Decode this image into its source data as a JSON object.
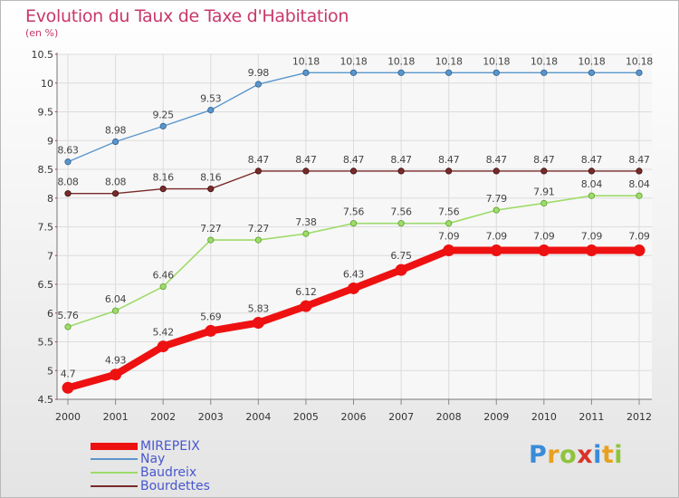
{
  "title": "Evolution du Taux de Taxe d'Habitation",
  "unit_label": "(en %)",
  "brand": {
    "letters": [
      "P",
      "r",
      "o",
      "x",
      "i",
      "t",
      "i"
    ],
    "colors": [
      "#3a8ad8",
      "#e8a020",
      "#8fc43c",
      "#d8342a",
      "#3a8ad8",
      "#e8a020",
      "#8fc43c"
    ]
  },
  "chart_data": {
    "type": "line",
    "x": [
      "2000",
      "2001",
      "2002",
      "2003",
      "2004",
      "2005",
      "2006",
      "2007",
      "2008",
      "2009",
      "2010",
      "2011",
      "2012"
    ],
    "ylim": [
      4.5,
      10.5
    ],
    "y_ticks": [
      "4.5",
      "5",
      "5.5",
      "6",
      "6.5",
      "7",
      "7.5",
      "8",
      "8.5",
      "9",
      "9.5",
      "10",
      "10.5"
    ],
    "grid": true,
    "legend_position": "bottom-left",
    "series": [
      {
        "name": "MIREPEIX",
        "color": "#ee1111",
        "values": [
          4.7,
          4.93,
          5.42,
          5.69,
          5.83,
          6.12,
          6.43,
          6.75,
          7.09,
          7.09,
          7.09,
          7.09,
          7.09
        ],
        "labels": [
          "4.7",
          "4.93",
          "5.42",
          "5.69",
          "5.83",
          "6.12",
          "6.43",
          "6.75",
          "7.09",
          "7.09",
          "7.09",
          "7.09",
          "7.09"
        ]
      },
      {
        "name": "Nay",
        "color": "#5a96cc",
        "values": [
          8.63,
          8.98,
          9.25,
          9.53,
          9.98,
          10.18,
          10.18,
          10.18,
          10.18,
          10.18,
          10.18,
          10.18,
          10.18
        ],
        "labels": [
          "8.63",
          "8.98",
          "9.25",
          "9.53",
          "9.98",
          "10.18",
          "10.18",
          "10.18",
          "10.18",
          "10.18",
          "10.18",
          "10.18",
          "10.18"
        ]
      },
      {
        "name": "Baudreix",
        "color": "#9edb6a",
        "values": [
          5.76,
          6.04,
          6.46,
          7.27,
          7.27,
          7.38,
          7.56,
          7.56,
          7.56,
          7.79,
          7.91,
          8.04,
          8.04
        ],
        "labels": [
          "5.76",
          "6.04",
          "6.46",
          "7.27",
          "7.27",
          "7.38",
          "7.56",
          "7.56",
          "7.56",
          "7.79",
          "7.91",
          "8.04",
          "8.04"
        ]
      },
      {
        "name": "Bourdettes",
        "color": "#7a2a2a",
        "values": [
          8.08,
          8.08,
          8.16,
          8.16,
          8.47,
          8.47,
          8.47,
          8.47,
          8.47,
          8.47,
          8.47,
          8.47,
          8.47
        ],
        "labels": [
          "8.08",
          "8.08",
          "8.16",
          "8.16",
          "8.47",
          "8.47",
          "8.47",
          "8.47",
          "8.47",
          "8.47",
          "8.47",
          "8.47",
          "8.47"
        ]
      }
    ]
  }
}
